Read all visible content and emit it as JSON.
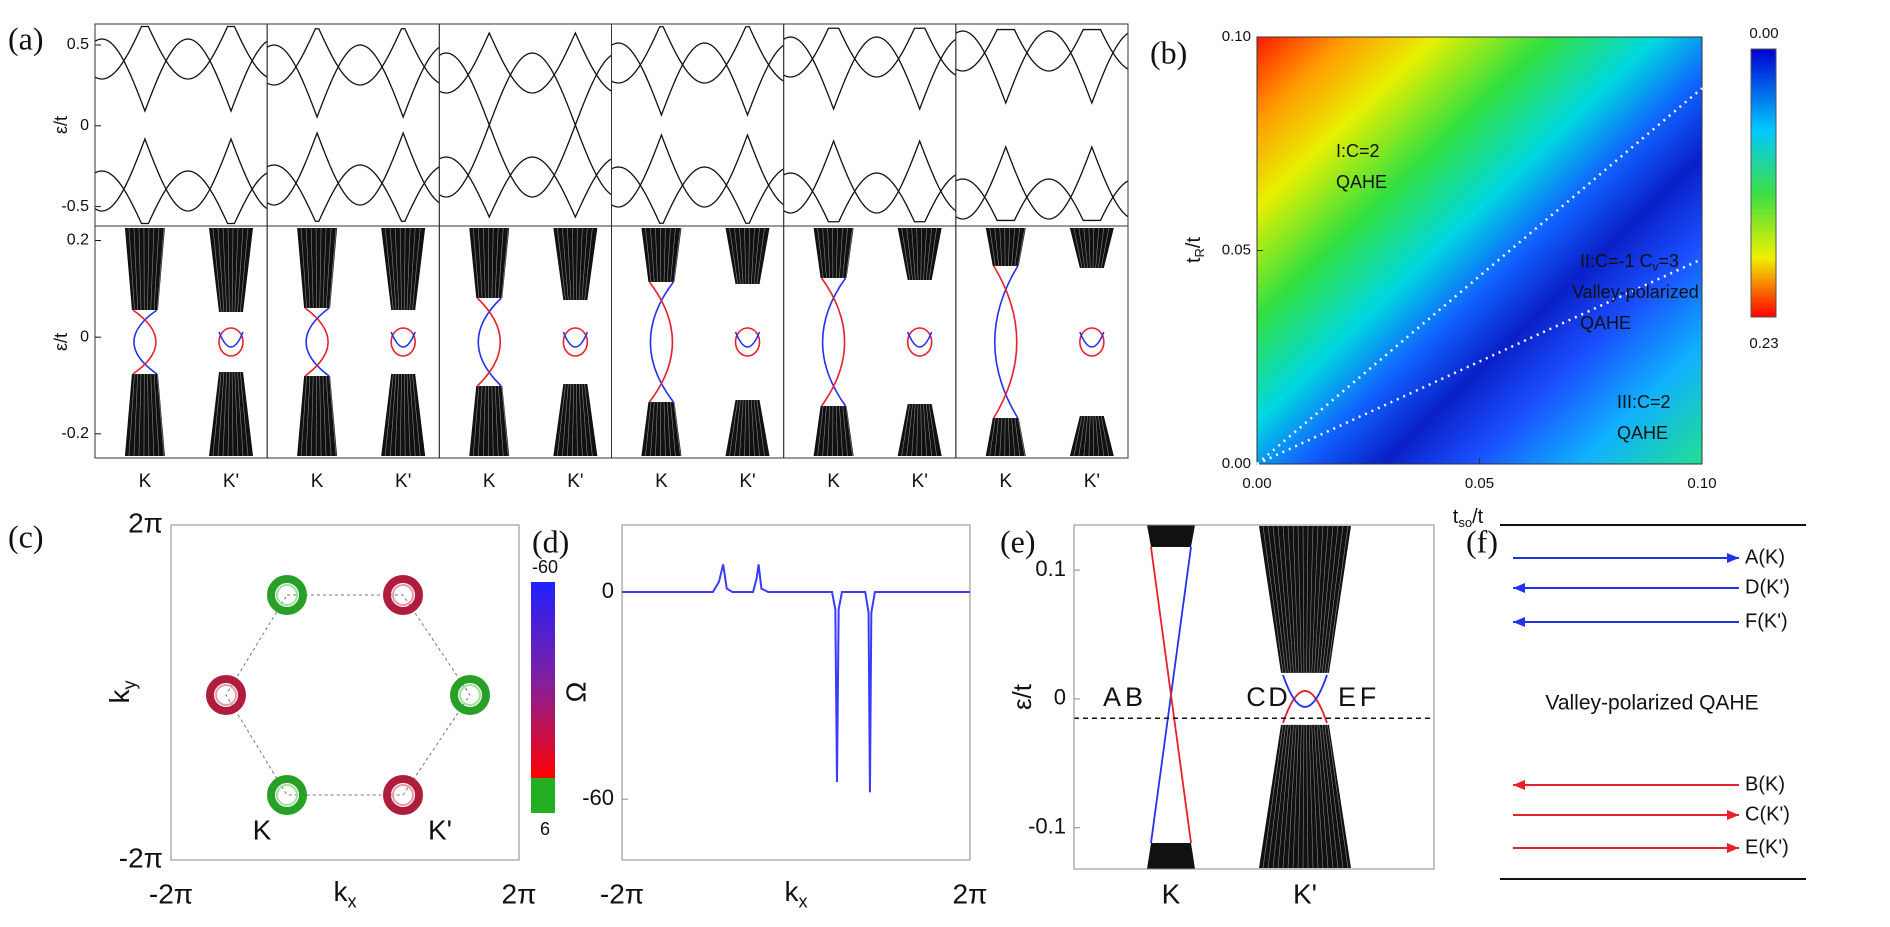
{
  "chart_data": [
    {
      "type": "band_grid",
      "label": "(a)",
      "ylabel": "ε/t",
      "rows": [
        {
          "ylim": [
            -0.62,
            0.63
          ],
          "yticks": [
            0.5,
            0,
            -0.5
          ]
        },
        {
          "ylim": [
            -0.25,
            0.23
          ],
          "yticks": [
            0.2,
            0,
            -0.2
          ]
        }
      ],
      "categories": [
        "K",
        "K'",
        "K",
        "K'",
        "K",
        "K'",
        "K",
        "K'",
        "K",
        "K'",
        "K",
        "K'"
      ]
    },
    {
      "type": "heatmap",
      "label": "(b)",
      "xlabel": [
        "t",
        "so",
        "/t"
      ],
      "ylabel": [
        "t",
        "R",
        "/t"
      ],
      "xlim": [
        0,
        0.1
      ],
      "ylim": [
        0,
        0.1
      ],
      "xticks": [
        {
          "value": 0,
          "label": "0.00"
        },
        0.05,
        {
          "value": 0.1,
          "label": "0.10"
        }
      ],
      "yticks": [
        {
          "value": 0,
          "label": "0.00"
        },
        0.05,
        {
          "value": 0.1,
          "label": "0.10"
        }
      ],
      "colorbar": {
        "ticks": [
          {
            "value": 0,
            "label": "0.00"
          },
          0.23
        ]
      },
      "boundaries": [
        {
          "x": [
            0,
            0.1
          ],
          "y": [
            0,
            0.088
          ]
        },
        {
          "x": [
            0,
            0.1
          ],
          "y": [
            0,
            0.048
          ]
        }
      ],
      "annotations": [
        {
          "color": "#1a1a1a",
          "lines": [
            [
              "I:C=2"
            ],
            [
              "QAHE"
            ]
          ]
        },
        {
          "color": "#d8f4ff",
          "lines": [
            [
              "II:C=-1 C",
              "v",
              "=3"
            ],
            [
              "Valley-polarized"
            ],
            [
              "QAHE"
            ]
          ]
        },
        {
          "color": "#1a1a1a",
          "lines": [
            [
              "III:C=2"
            ],
            [
              "QAHE"
            ]
          ]
        }
      ]
    },
    {
      "type": "berry_map",
      "label": "(c)",
      "xlabel": [
        "k",
        "x"
      ],
      "ylabel": [
        "k",
        "y"
      ],
      "xlim": [
        -6.283,
        6.283
      ],
      "ylim": [
        -6.283,
        6.283
      ],
      "xticks": [
        {
          "value": -6.283,
          "label": "-2π"
        },
        {
          "value": 6.283,
          "label": "2π"
        }
      ],
      "yticks": [
        {
          "value": 6.283,
          "label": "2π"
        },
        {
          "value": -6.283,
          "label": "-2π"
        }
      ],
      "colorbar": {
        "ticks": [
          -60,
          6
        ]
      },
      "point_labels": [
        "K",
        "K'"
      ]
    },
    {
      "type": "line",
      "label": "(d)",
      "ylabel": "Ω",
      "xlabel": [
        "k",
        "x"
      ],
      "xlim": [
        -6.283,
        6.283
      ],
      "xticks": [
        {
          "value": -6.283,
          "label": "-2π"
        },
        {
          "value": 6.283,
          "label": "2π"
        }
      ],
      "ylim": [
        -77.6,
        19.4
      ],
      "yticks": [
        0,
        -60
      ],
      "color": "#3b3bff",
      "x": [
        -6.283,
        -3.0,
        -2.78,
        -2.63,
        -2.5,
        -2.3,
        -1.55,
        -1.42,
        -1.35,
        -1.25,
        -1.0,
        1.3,
        1.42,
        1.48,
        1.54,
        1.66,
        2.5,
        2.62,
        2.67,
        2.72,
        2.85,
        6.283
      ],
      "values": [
        0,
        0,
        3,
        8,
        1,
        0,
        0,
        4,
        8,
        1,
        0,
        0,
        -5,
        -55,
        -5,
        0,
        0,
        -6,
        -58,
        -6,
        0,
        0
      ]
    },
    {
      "type": "band",
      "label": "(e)",
      "ylabel": "ε/t",
      "ylim": [
        -0.132,
        0.135
      ],
      "yticks": [
        0.1,
        0,
        -0.1
      ],
      "categories": [
        "K",
        "K'"
      ],
      "fermi_level": -0.015,
      "state_labels": [
        {
          "text": "A",
          "color": "#2233ee"
        },
        {
          "text": "B",
          "color": "#e8202a"
        },
        {
          "text": "C",
          "color": "#e8202a"
        },
        {
          "text": "D",
          "color": "#2233ee"
        },
        {
          "text": "E",
          "color": "#e8202a"
        },
        {
          "text": "F",
          "color": "#2233ee"
        }
      ]
    }
  ],
  "panel_f": {
    "label": "(f)",
    "title": "Valley-polarized QAHE",
    "arrows": [
      {
        "text": "A(K)",
        "direction": "right",
        "color": "#2233ee"
      },
      {
        "text": "D(K')",
        "direction": "left",
        "color": "#2233ee"
      },
      {
        "text": "F(K')",
        "direction": "left",
        "color": "#2233ee"
      },
      {
        "text": "B(K)",
        "direction": "left",
        "color": "#e8202a"
      },
      {
        "text": "C(K')",
        "direction": "right",
        "color": "#e8202a"
      },
      {
        "text": "E(K')",
        "direction": "right",
        "color": "#e8202a"
      }
    ]
  }
}
